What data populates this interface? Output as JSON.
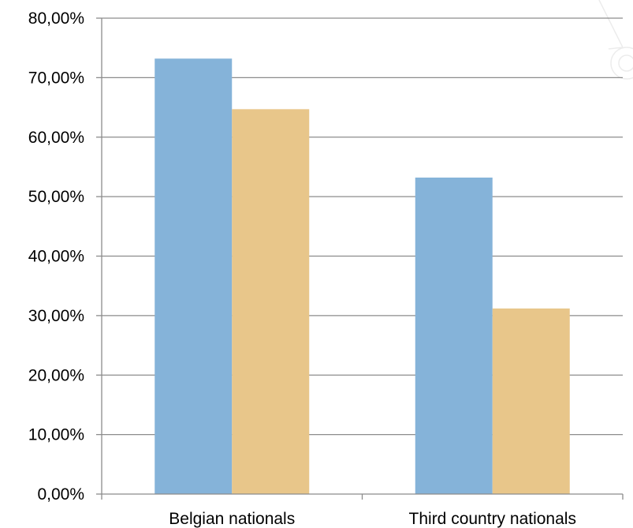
{
  "chart_data": {
    "type": "bar",
    "categories": [
      "Belgian nationals",
      "Third country nationals"
    ],
    "series": [
      {
        "values": [
          73.2,
          53.2
        ],
        "color": "#85b3d9"
      },
      {
        "values": [
          64.7,
          31.2
        ],
        "color": "#e8c68a"
      }
    ],
    "ylim": [
      0,
      80
    ],
    "yticks": [
      0,
      10,
      20,
      30,
      40,
      50,
      60,
      70,
      80
    ],
    "ytick_labels": [
      "0,00%",
      "10,00%",
      "20,00%",
      "30,00%",
      "40,00%",
      "50,00%",
      "60,00%",
      "70,00%",
      "80,00%"
    ],
    "grid": true,
    "legend": "none",
    "gridline_color": "#8c8c8c"
  }
}
